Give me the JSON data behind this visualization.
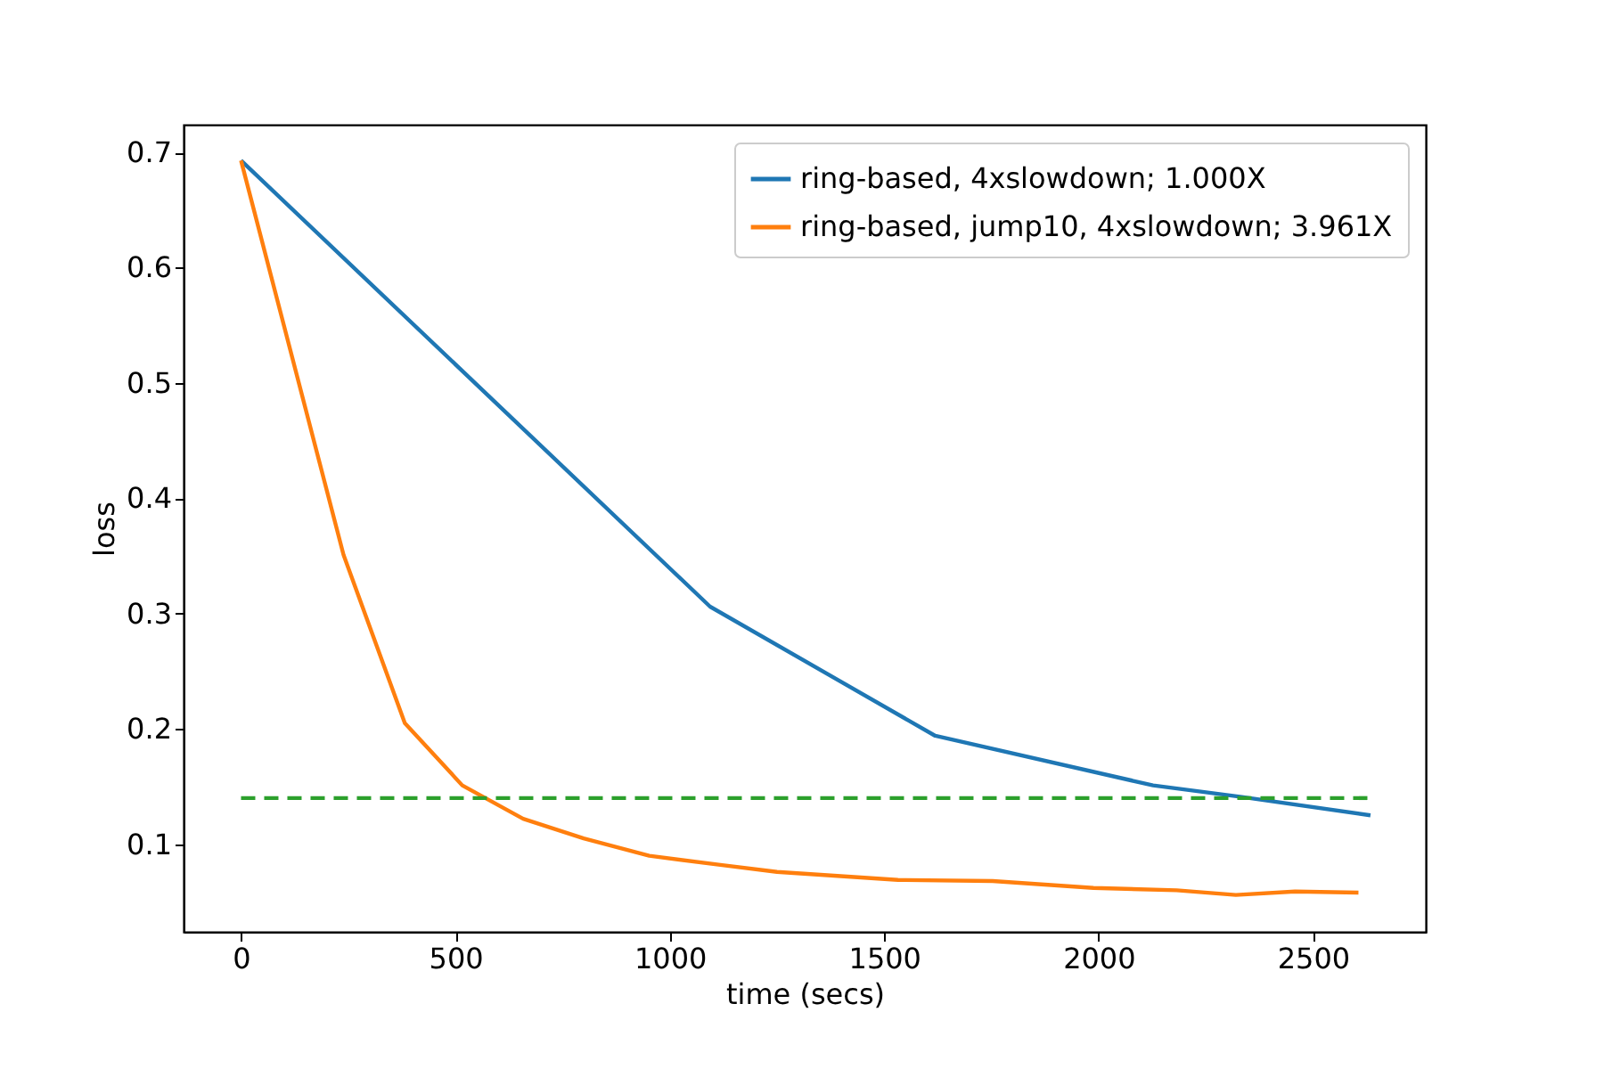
{
  "chart_data": {
    "type": "line",
    "xlabel": "time (secs)",
    "ylabel": "loss",
    "xlim": [
      -134,
      2763
    ],
    "xticks": [
      0,
      500,
      1000,
      1500,
      2000,
      2500
    ],
    "ylim": [
      0.024,
      0.724
    ],
    "yticks": [
      0.1,
      0.2,
      0.3,
      0.4,
      0.5,
      0.6,
      0.7
    ],
    "grid": false,
    "legend": "top right",
    "line_style": "solid",
    "series": [
      {
        "name": "ring-based, 4xslowdown; 1.000X",
        "color": "#1f77b4",
        "x": [
          0,
          1094,
          1619,
          2127,
          2334,
          2634
        ],
        "values": [
          0.693,
          0.306,
          0.194,
          0.151,
          0.141,
          0.125
        ]
      },
      {
        "name": "ring-based, jump10, 4xslowdown; 3.961X",
        "color": "#ff7f0e",
        "x": [
          0,
          239,
          382,
          516,
          658,
          799,
          952,
          1118,
          1250,
          1532,
          1753,
          1988,
          2182,
          2320,
          2458,
          2606
        ],
        "values": [
          0.693,
          0.351,
          0.205,
          0.151,
          0.122,
          0.105,
          0.09,
          0.082,
          0.076,
          0.069,
          0.068,
          0.062,
          0.06,
          0.056,
          0.059,
          0.058
        ]
      },
      {
        "color": "#2ca02c",
        "line_style": "dashed",
        "x": [
          0,
          2631
        ],
        "values": [
          0.14,
          0.14
        ]
      }
    ]
  }
}
